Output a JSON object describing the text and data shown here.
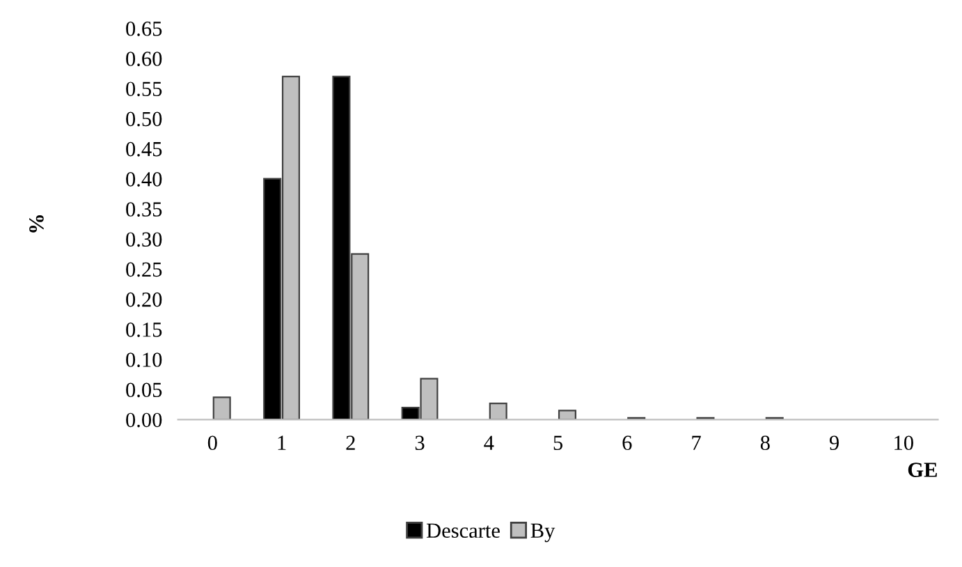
{
  "chart_data": {
    "type": "bar",
    "xlabel": "GE",
    "ylabel": "%",
    "categories": [
      "0",
      "1",
      "2",
      "3",
      "4",
      "5",
      "6",
      "7",
      "8",
      "9",
      "10"
    ],
    "series": [
      {
        "name": "Descarte",
        "color": "#000000",
        "values": [
          0,
          0.4,
          0.57,
          0.02,
          0,
          0,
          0,
          0,
          0,
          0,
          0
        ]
      },
      {
        "name": "By",
        "color": "#bfbfbf",
        "values": [
          0.037,
          0.57,
          0.275,
          0.068,
          0.027,
          0.015,
          0.003,
          0.003,
          0.003,
          0,
          0
        ]
      }
    ],
    "ylim": [
      0,
      0.65
    ],
    "yticks": [
      {
        "value": 0,
        "label": "0.00"
      },
      {
        "value": 0.05,
        "label": "0.05"
      },
      {
        "value": 0.1,
        "label": "0.10"
      },
      {
        "value": 0.15,
        "label": "0.15"
      },
      {
        "value": 0.2,
        "label": "0.20"
      },
      {
        "value": 0.25,
        "label": "0.25"
      },
      {
        "value": 0.3,
        "label": "0.30"
      },
      {
        "value": 0.35,
        "label": "0.35"
      },
      {
        "value": 0.4,
        "label": "0.40"
      },
      {
        "value": 0.45,
        "label": "0.45"
      },
      {
        "value": 0.5,
        "label": "0.50"
      },
      {
        "value": 0.55,
        "label": "0.55"
      },
      {
        "value": 0.6,
        "label": "0.60"
      },
      {
        "value": 0.65,
        "label": "0.65"
      }
    ],
    "grid": false,
    "legend": "bottom"
  }
}
